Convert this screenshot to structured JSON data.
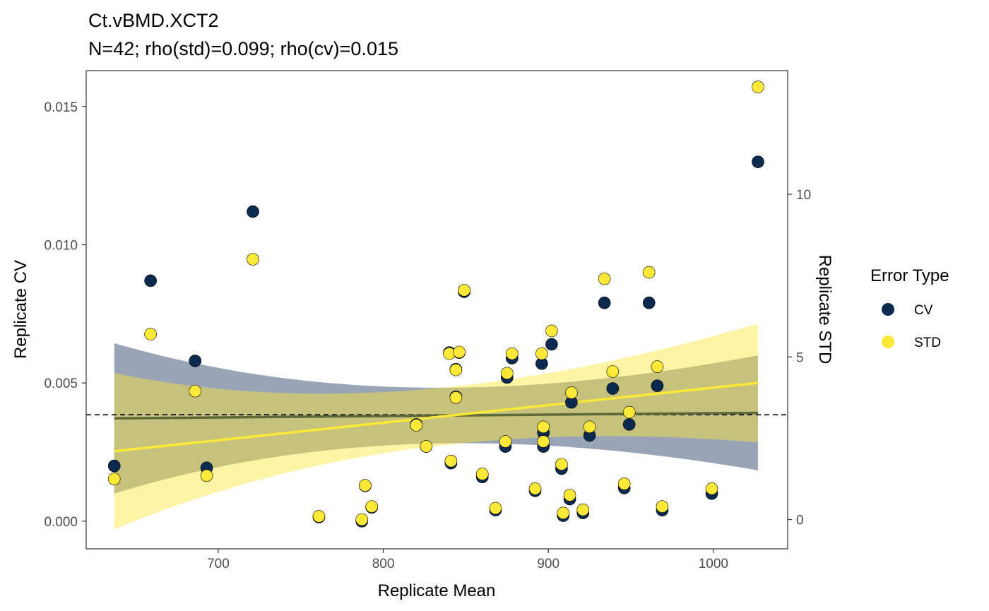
{
  "chart_data": {
    "type": "scatter",
    "title": "Ct.vBMD.XCT2",
    "subtitle": "N=42; rho(std)=0.099; rho(cv)=0.015",
    "xlabel": "Replicate Mean",
    "ylabel": "Replicate CV",
    "y2label": "Replicate STD",
    "xlim": [
      620,
      1045
    ],
    "ylim": [
      -0.001,
      0.0163
    ],
    "y2lim": [
      -0.9,
      13.8
    ],
    "x_ticks": [
      700,
      800,
      900,
      1000
    ],
    "y_ticks": [
      0.0,
      0.005,
      0.01,
      0.015
    ],
    "y_tick_labels": [
      "0.000",
      "0.005",
      "0.010",
      "0.015"
    ],
    "y2_ticks": [
      0,
      5,
      10
    ],
    "y2_tick_labels": [
      "0",
      "5",
      "10"
    ],
    "reference_line_y": 0.00385,
    "grid": false,
    "legend": {
      "title": "Error Type",
      "position": "right",
      "entries": [
        {
          "label": "CV",
          "color": "#0c2a50"
        },
        {
          "label": "STD",
          "color": "#fde737"
        }
      ]
    },
    "series": [
      {
        "name": "CV",
        "axis": "left",
        "color": "#0c2a50",
        "x": [
          637,
          659,
          686,
          693,
          721,
          761,
          787,
          789,
          793,
          820,
          826,
          840,
          844,
          844,
          841,
          846,
          849,
          860,
          868,
          874,
          875,
          878,
          892,
          896,
          897,
          897,
          902,
          908,
          909,
          913,
          914,
          921,
          925,
          934,
          939,
          946,
          949,
          961,
          966,
          969,
          999,
          1027
        ],
        "y": [
          0.002,
          0.0087,
          0.0058,
          0.00193,
          0.0112,
          0.00015,
          0.0,
          0.00128,
          0.0005,
          0.0035,
          0.0027,
          0.0061,
          0.0055,
          0.0045,
          0.0021,
          0.0061,
          0.0083,
          0.0016,
          0.0004,
          0.0027,
          0.0052,
          0.0059,
          0.0011,
          0.0057,
          0.0032,
          0.0027,
          0.0064,
          0.0019,
          0.0002,
          0.0008,
          0.0043,
          0.0003,
          0.0031,
          0.0079,
          0.0048,
          0.0012,
          0.0035,
          0.0079,
          0.0049,
          0.0004,
          0.001,
          0.013
        ]
      },
      {
        "name": "STD",
        "axis": "right",
        "color": "#fde737",
        "x": [
          637,
          659,
          686,
          693,
          721,
          761,
          787,
          789,
          793,
          820,
          826,
          840,
          844,
          844,
          841,
          846,
          849,
          860,
          868,
          874,
          875,
          878,
          892,
          896,
          897,
          897,
          902,
          908,
          909,
          913,
          914,
          921,
          925,
          934,
          939,
          946,
          949,
          961,
          966,
          969,
          999,
          1027
        ],
        "y": [
          1.25,
          5.7,
          3.95,
          1.35,
          8.0,
          0.1,
          0.0,
          1.05,
          0.4,
          2.9,
          2.25,
          5.1,
          4.6,
          3.75,
          1.8,
          5.15,
          7.05,
          1.4,
          0.35,
          2.4,
          4.5,
          5.1,
          0.95,
          5.1,
          2.85,
          2.4,
          5.8,
          1.7,
          0.2,
          0.75,
          3.9,
          0.3,
          2.85,
          7.4,
          4.55,
          1.1,
          3.3,
          7.6,
          4.7,
          0.4,
          0.95,
          13.3
        ]
      }
    ],
    "fits": [
      {
        "name": "CV",
        "axis": "left",
        "color": "#5c6a3a",
        "band_color": "#7d8ba3",
        "x": [
          637,
          1027
        ],
        "y": [
          0.00372,
          0.00392
        ],
        "band_low": [
          0.00098,
          0.00182
        ],
        "band_high": [
          0.00642,
          0.00598
        ]
      },
      {
        "name": "STD",
        "axis": "right",
        "color": "#fde737",
        "band_color": "#fde737",
        "x": [
          637,
          1027
        ],
        "y": [
          2.1,
          4.2
        ],
        "band_low": [
          -0.3,
          2.35
        ],
        "band_high": [
          4.5,
          6.0
        ]
      }
    ]
  }
}
